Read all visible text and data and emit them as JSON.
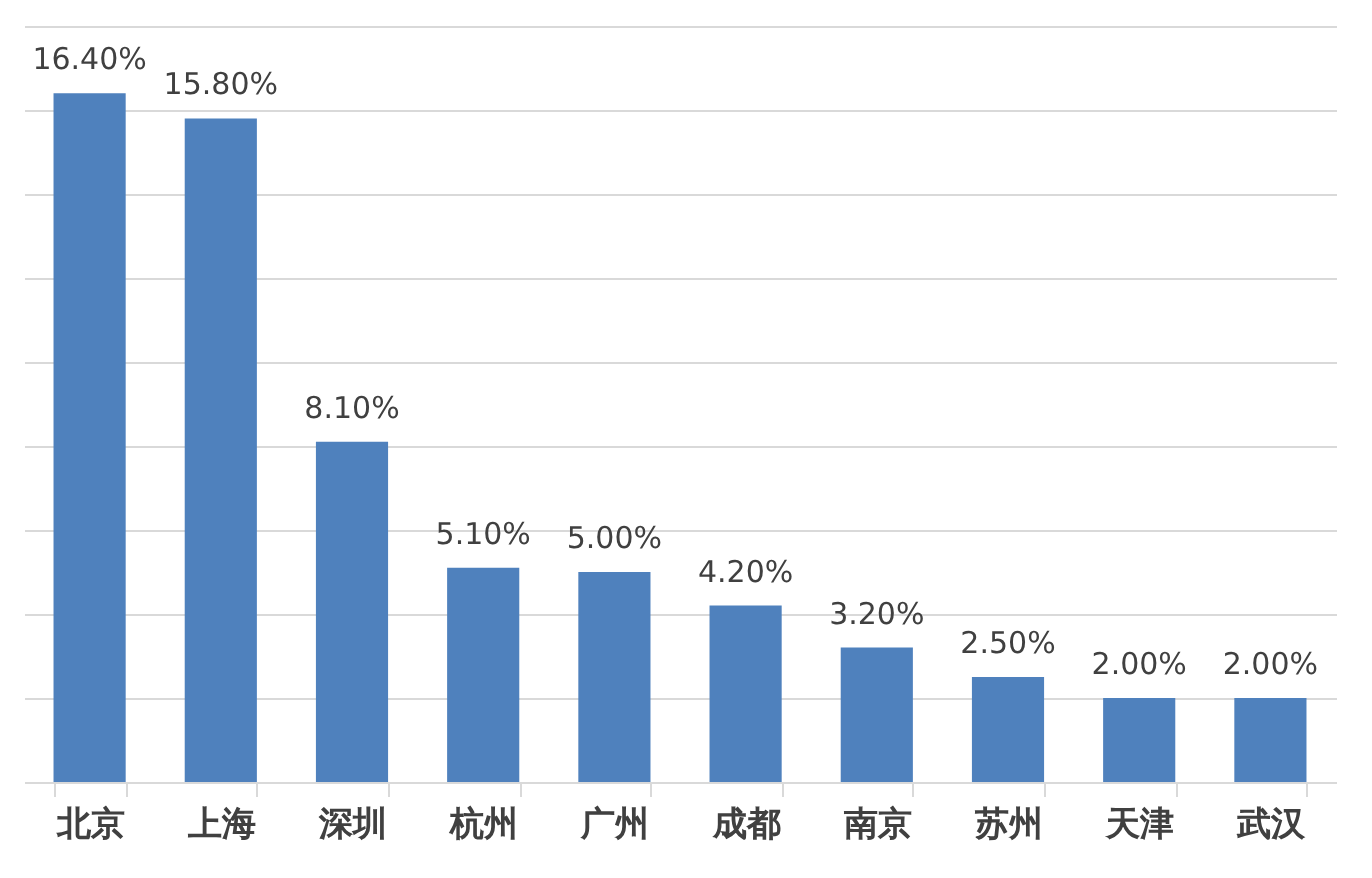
{
  "chart_data": {
    "type": "bar",
    "categories": [
      "北京",
      "上海",
      "深圳",
      "杭州",
      "广州",
      "成都",
      "南京",
      "苏州",
      "天津",
      "武汉"
    ],
    "values": [
      16.4,
      15.8,
      8.1,
      5.1,
      5.0,
      4.2,
      3.2,
      2.5,
      2.0,
      2.0
    ],
    "value_labels": [
      "16.40%",
      "15.80%",
      "8.10%",
      "5.10%",
      "5.00%",
      "4.20%",
      "3.20%",
      "2.50%",
      "2.00%",
      "2.00%"
    ],
    "color": "#4f81bd",
    "ylim": [
      0,
      18
    ],
    "yticks": [
      {
        "value": 0,
        "label": null
      },
      {
        "value": 2,
        "label": null
      },
      {
        "value": 4,
        "label": null
      },
      {
        "value": 6,
        "label": null
      },
      {
        "value": 8,
        "label": null
      },
      {
        "value": 10,
        "label": null
      },
      {
        "value": 12,
        "label": null
      },
      {
        "value": 14,
        "label": null
      },
      {
        "value": 16,
        "label": null
      },
      {
        "value": 18,
        "label": null
      }
    ],
    "grid": "y",
    "tick_labels": "x"
  }
}
